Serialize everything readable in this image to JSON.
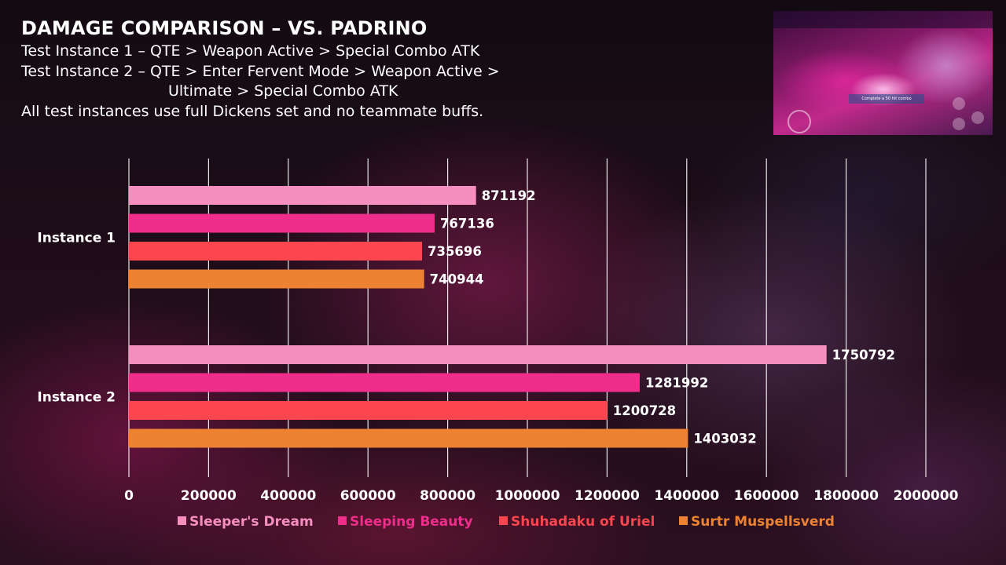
{
  "chart_data": {
    "type": "bar",
    "orientation": "horizontal",
    "title": "DAMAGE COMPARISON – VS. PADRINO",
    "subtitle_lines": [
      "Test Instance 1 – QTE > Weapon Active > Special Combo ATK",
      "Test Instance 2 – QTE > Enter Fervent Mode > Weapon Active >",
      "Ultimate > Special Combo ATK",
      "All test instances use full Dickens set and no teammate buffs."
    ],
    "categories": [
      "Instance 1",
      "Instance 2"
    ],
    "series": [
      {
        "name": "Sleeper's Dream",
        "color": "#f68fc0",
        "values": [
          871192,
          1750792
        ]
      },
      {
        "name": "Sleeping Beauty",
        "color": "#ee2e8a",
        "values": [
          767136,
          1281992
        ]
      },
      {
        "name": "Shuhadaku of Uriel",
        "color": "#fb454f",
        "values": [
          735696,
          1200728
        ]
      },
      {
        "name": "Surtr Muspellsverd",
        "color": "#ec8232",
        "values": [
          740944,
          1403032
        ]
      }
    ],
    "xlim": [
      0,
      2000000
    ],
    "xticks": [
      0,
      200000,
      400000,
      600000,
      800000,
      1000000,
      1200000,
      1400000,
      1600000,
      1800000,
      2000000
    ],
    "xlabel": "",
    "ylabel": "",
    "grid": "vertical",
    "legend": "bottom",
    "data_labels": true
  },
  "thumbnail": {
    "description_icon": "game-screenshot-icon",
    "hud_text": "Complete a 50 hit combo"
  }
}
